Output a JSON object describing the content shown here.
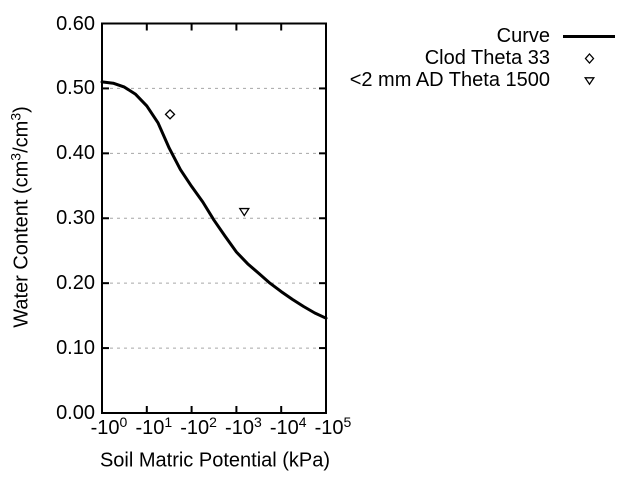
{
  "chart_data": {
    "type": "line",
    "title": "",
    "xlabel": "Soil Matric Potential (kPa)",
    "ylabel": "Water Content (cm3/cm3)",
    "x_axis": {
      "scale": "negative-log10",
      "tick_labels": [
        "-10^0",
        "-10^1",
        "-10^2",
        "-10^3",
        "-10^4",
        "-10^5"
      ],
      "tick_log10_abs_kPa": [
        0,
        1,
        2,
        3,
        4,
        5
      ]
    },
    "y_axis": {
      "range": [
        0.0,
        0.6
      ],
      "tick_step": 0.1,
      "tick_labels": [
        "0.00",
        "0.10",
        "0.20",
        "0.30",
        "0.40",
        "0.50",
        "0.60"
      ]
    },
    "grid": {
      "y_values": [
        0.1,
        0.2,
        0.3,
        0.4,
        0.5
      ],
      "style": "dashed-horizontal"
    },
    "legend_position": "top-right-outside",
    "series": [
      {
        "name": "Curve",
        "type": "line",
        "x_log10_abs_kPa": [
          0,
          0.25,
          0.5,
          0.75,
          1,
          1.25,
          1.5,
          1.75,
          2,
          2.25,
          2.5,
          2.75,
          3,
          3.25,
          3.5,
          3.75,
          4,
          4.25,
          4.5,
          4.75,
          5
        ],
        "y_water_content": [
          0.51,
          0.508,
          0.502,
          0.491,
          0.473,
          0.447,
          0.408,
          0.375,
          0.349,
          0.325,
          0.297,
          0.272,
          0.248,
          0.23,
          0.215,
          0.2,
          0.187,
          0.175,
          0.164,
          0.154,
          0.146
        ]
      },
      {
        "name": "Clod Theta 33",
        "type": "scatter",
        "marker": "open-diamond",
        "points": [
          {
            "x_kPa": -33,
            "y_water_content": 0.46
          }
        ]
      },
      {
        "name": "<2 mm AD Theta 1500",
        "type": "scatter",
        "marker": "open-triangle-down",
        "points": [
          {
            "x_kPa": -1500,
            "y_water_content": 0.31
          }
        ]
      }
    ]
  },
  "labels": {
    "xlabel": "Soil Matric Potential (kPa)",
    "ylabel_parts": {
      "pre": "Water Content (cm",
      "sup_a": "3",
      "mid": "/cm",
      "sup_b": "3",
      "post": ")"
    },
    "x_ticks": [
      {
        "base": "-10",
        "exp": "0"
      },
      {
        "base": "-10",
        "exp": "1"
      },
      {
        "base": "-10",
        "exp": "2"
      },
      {
        "base": "-10",
        "exp": "3"
      },
      {
        "base": "-10",
        "exp": "4"
      },
      {
        "base": "-10",
        "exp": "5"
      }
    ],
    "y_ticks": [
      "0.00",
      "0.10",
      "0.20",
      "0.30",
      "0.40",
      "0.50",
      "0.60"
    ]
  },
  "legend": {
    "items": [
      {
        "label": "Curve",
        "symbol": "line-sample"
      },
      {
        "label": "Clod Theta 33",
        "symbol": "open-diamond"
      },
      {
        "label": "<2 mm AD Theta 1500",
        "symbol": "open-triangle-down"
      }
    ]
  },
  "colors": {
    "curve": "#000000",
    "marker": "#000000",
    "grid": "#a6a6a6",
    "frame": "#000000",
    "text": "#000000",
    "background": "#ffffff"
  }
}
